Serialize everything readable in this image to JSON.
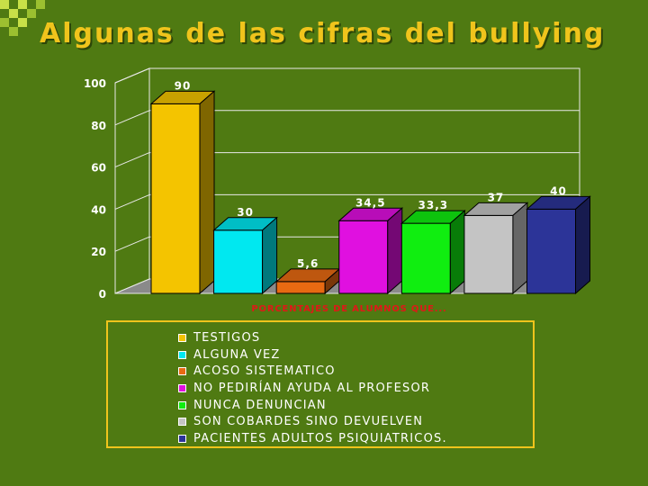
{
  "slide": {
    "title": "Algunas de las cifras del bullying"
  },
  "chart_data": {
    "type": "bar",
    "title": "",
    "xlabel": "PORCENTAJES DE ALUMNOS QUE...",
    "ylabel": "",
    "ylim": [
      0,
      100
    ],
    "yticks": [
      "0",
      "20",
      "40",
      "60",
      "80",
      "100"
    ],
    "grid": true,
    "legend_placement": "bottom",
    "categories": [
      "TESTIGOS",
      "ALGUNA VEZ",
      "ACOSO SISTEMATICO",
      "NO PEDIRÍAN AYUDA AL PROFESOR",
      "NUNCA DENUNCIAN",
      "SON COBARDES SINO DEVUELVEN",
      "PACIENTES ADULTOS PSIQUIATRICOS."
    ],
    "values": [
      90,
      30,
      5.6,
      34.5,
      33.3,
      37,
      40
    ],
    "value_labels": [
      "90",
      "30",
      "5,6",
      "34,5",
      "33,3",
      "37",
      "40"
    ],
    "colors": [
      "#f4c400",
      "#00e8f0",
      "#e86a12",
      "#e010e0",
      "#10ee10",
      "#c4c4c4",
      "#2c3498"
    ]
  },
  "theme": {
    "background": "#4f7a12",
    "title_color": "#f0c41c",
    "axis_label_color": "#e01818",
    "legend_text_color": "#ffffff",
    "legend_border": "#f0c41c"
  }
}
